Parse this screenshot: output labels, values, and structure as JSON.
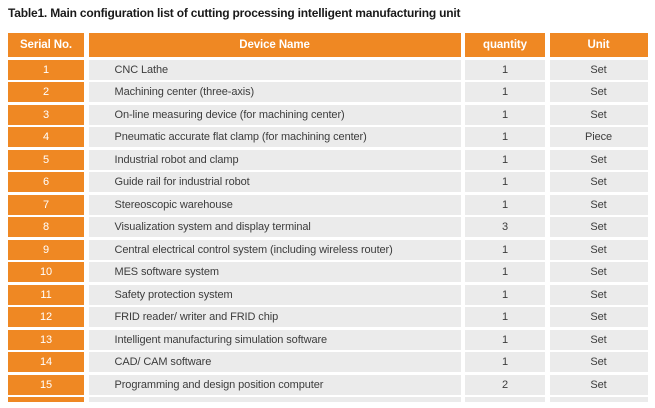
{
  "title": "Table1. Main configuration list of cutting processing intelligent manufacturing unit",
  "colors": {
    "accent_orange": "#ef8823",
    "row_gray": "#ebebeb",
    "header_text": "#ffffff",
    "body_text": "#3c3c3c",
    "title_text": "#1a1a1a"
  },
  "table": {
    "headers": {
      "serial": "Serial No.",
      "device": "Device Name",
      "quantity": "quantity",
      "unit": "Unit"
    },
    "rows": [
      {
        "serial": "1",
        "device": "CNC Lathe",
        "quantity": "1",
        "unit": "Set"
      },
      {
        "serial": "2",
        "device": "Machining center (three-axis)",
        "quantity": "1",
        "unit": "Set"
      },
      {
        "serial": "3",
        "device": "On-line measuring device (for machining center)",
        "quantity": "1",
        "unit": "Set"
      },
      {
        "serial": "4",
        "device": "Pneumatic accurate flat clamp (for machining center)",
        "quantity": "1",
        "unit": "Piece"
      },
      {
        "serial": "5",
        "device": "Industrial robot and clamp",
        "quantity": "1",
        "unit": "Set"
      },
      {
        "serial": "6",
        "device": "Guide rail for industrial robot",
        "quantity": "1",
        "unit": "Set"
      },
      {
        "serial": "7",
        "device": "Stereoscopic warehouse",
        "quantity": "1",
        "unit": "Set"
      },
      {
        "serial": "8",
        "device": "Visualization system and display terminal",
        "quantity": "3",
        "unit": "Set"
      },
      {
        "serial": "9",
        "device": "Central electrical control system (including wireless router)",
        "quantity": "1",
        "unit": "Set"
      },
      {
        "serial": "10",
        "device": "MES software system",
        "quantity": "1",
        "unit": "Set"
      },
      {
        "serial": "11",
        "device": "Safety protection system",
        "quantity": "1",
        "unit": "Set"
      },
      {
        "serial": "12",
        "device": "FRID reader/ writer and FRID chip",
        "quantity": "1",
        "unit": "Set"
      },
      {
        "serial": "13",
        "device": "Intelligent manufacturing simulation software",
        "quantity": "1",
        "unit": "Set"
      },
      {
        "serial": "14",
        "device": "CAD/ CAM software",
        "quantity": "1",
        "unit": "Set"
      },
      {
        "serial": "15",
        "device": "Programming and design position computer",
        "quantity": "2",
        "unit": "Set"
      }
    ]
  }
}
